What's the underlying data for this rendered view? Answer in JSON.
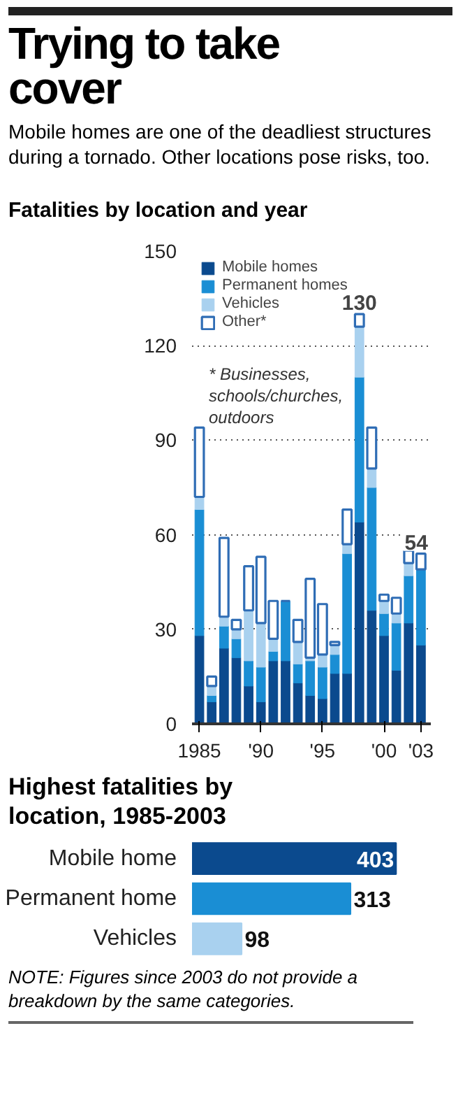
{
  "chart_data": [
    {
      "type": "other",
      "title": "Trying to take cover",
      "subtitle": "Mobile homes are one of the deadliest structures during a tornado. Other locations pose risks, too."
    },
    {
      "type": "bar",
      "stacked": true,
      "title": "Fatalities by location and year",
      "x": [
        1985,
        1986,
        1987,
        1988,
        1989,
        1990,
        1991,
        1992,
        1993,
        1994,
        1995,
        1996,
        1997,
        1998,
        1999,
        2000,
        2001,
        2002,
        2003
      ],
      "series": [
        {
          "name": "Mobile homes",
          "color": "#0b4a8e",
          "values": [
            28,
            7,
            24,
            21,
            12,
            7,
            20,
            20,
            13,
            9,
            8,
            16,
            16,
            64,
            36,
            28,
            17,
            32,
            25
          ]
        },
        {
          "name": "Permanent homes",
          "color": "#1a8ed4",
          "values": [
            40,
            2,
            7,
            6,
            8,
            11,
            3,
            19,
            6,
            11,
            10,
            6,
            38,
            46,
            39,
            7,
            15,
            15,
            24
          ]
        },
        {
          "name": "Vehicles",
          "color": "#a9d1ef",
          "values": [
            4,
            3,
            3,
            3,
            16,
            14,
            4,
            0,
            7,
            1,
            4,
            3,
            3,
            16,
            6,
            4,
            3,
            4,
            0
          ]
        },
        {
          "name": "Other*",
          "color": "#ffffff",
          "values": [
            22,
            3,
            25,
            3,
            14,
            21,
            12,
            0,
            7,
            25,
            16,
            1,
            11,
            4,
            13,
            2,
            5,
            4,
            5
          ]
        }
      ],
      "totals": [
        null,
        null,
        null,
        null,
        null,
        null,
        null,
        null,
        null,
        null,
        null,
        null,
        null,
        "130",
        null,
        null,
        null,
        null,
        "54"
      ],
      "xlim": [
        1984.4,
        2003.8
      ],
      "xticks": [
        {
          "value": 1985,
          "label": "1985"
        },
        {
          "value": 1990,
          "label": "'90"
        },
        {
          "value": 1995,
          "label": "'95"
        },
        {
          "value": 2000,
          "label": "'00"
        },
        {
          "value": 2003,
          "label": "'03"
        }
      ],
      "ylim": [
        0,
        150
      ],
      "yticks": [
        0,
        30,
        60,
        90,
        120,
        150
      ],
      "grid": "y",
      "legend": "top left",
      "annotations": [
        "* Businesses, schools/churches, outdoors"
      ]
    },
    {
      "type": "bar",
      "orientation": "horizontal",
      "title": "Highest fatalities by location, 1985-2003",
      "categories": [
        "Mobile home",
        "Permanent home",
        "Vehicles"
      ],
      "values": [
        403,
        313,
        98
      ],
      "colors": [
        "#0b4a8e",
        "#1a8ed4",
        "#a9d1ef"
      ],
      "data_labels": true,
      "tick_labels": "y",
      "annotations": [
        "NOTE: Figures since 2003 do not provide a breakdown by the same categories."
      ]
    }
  ]
}
